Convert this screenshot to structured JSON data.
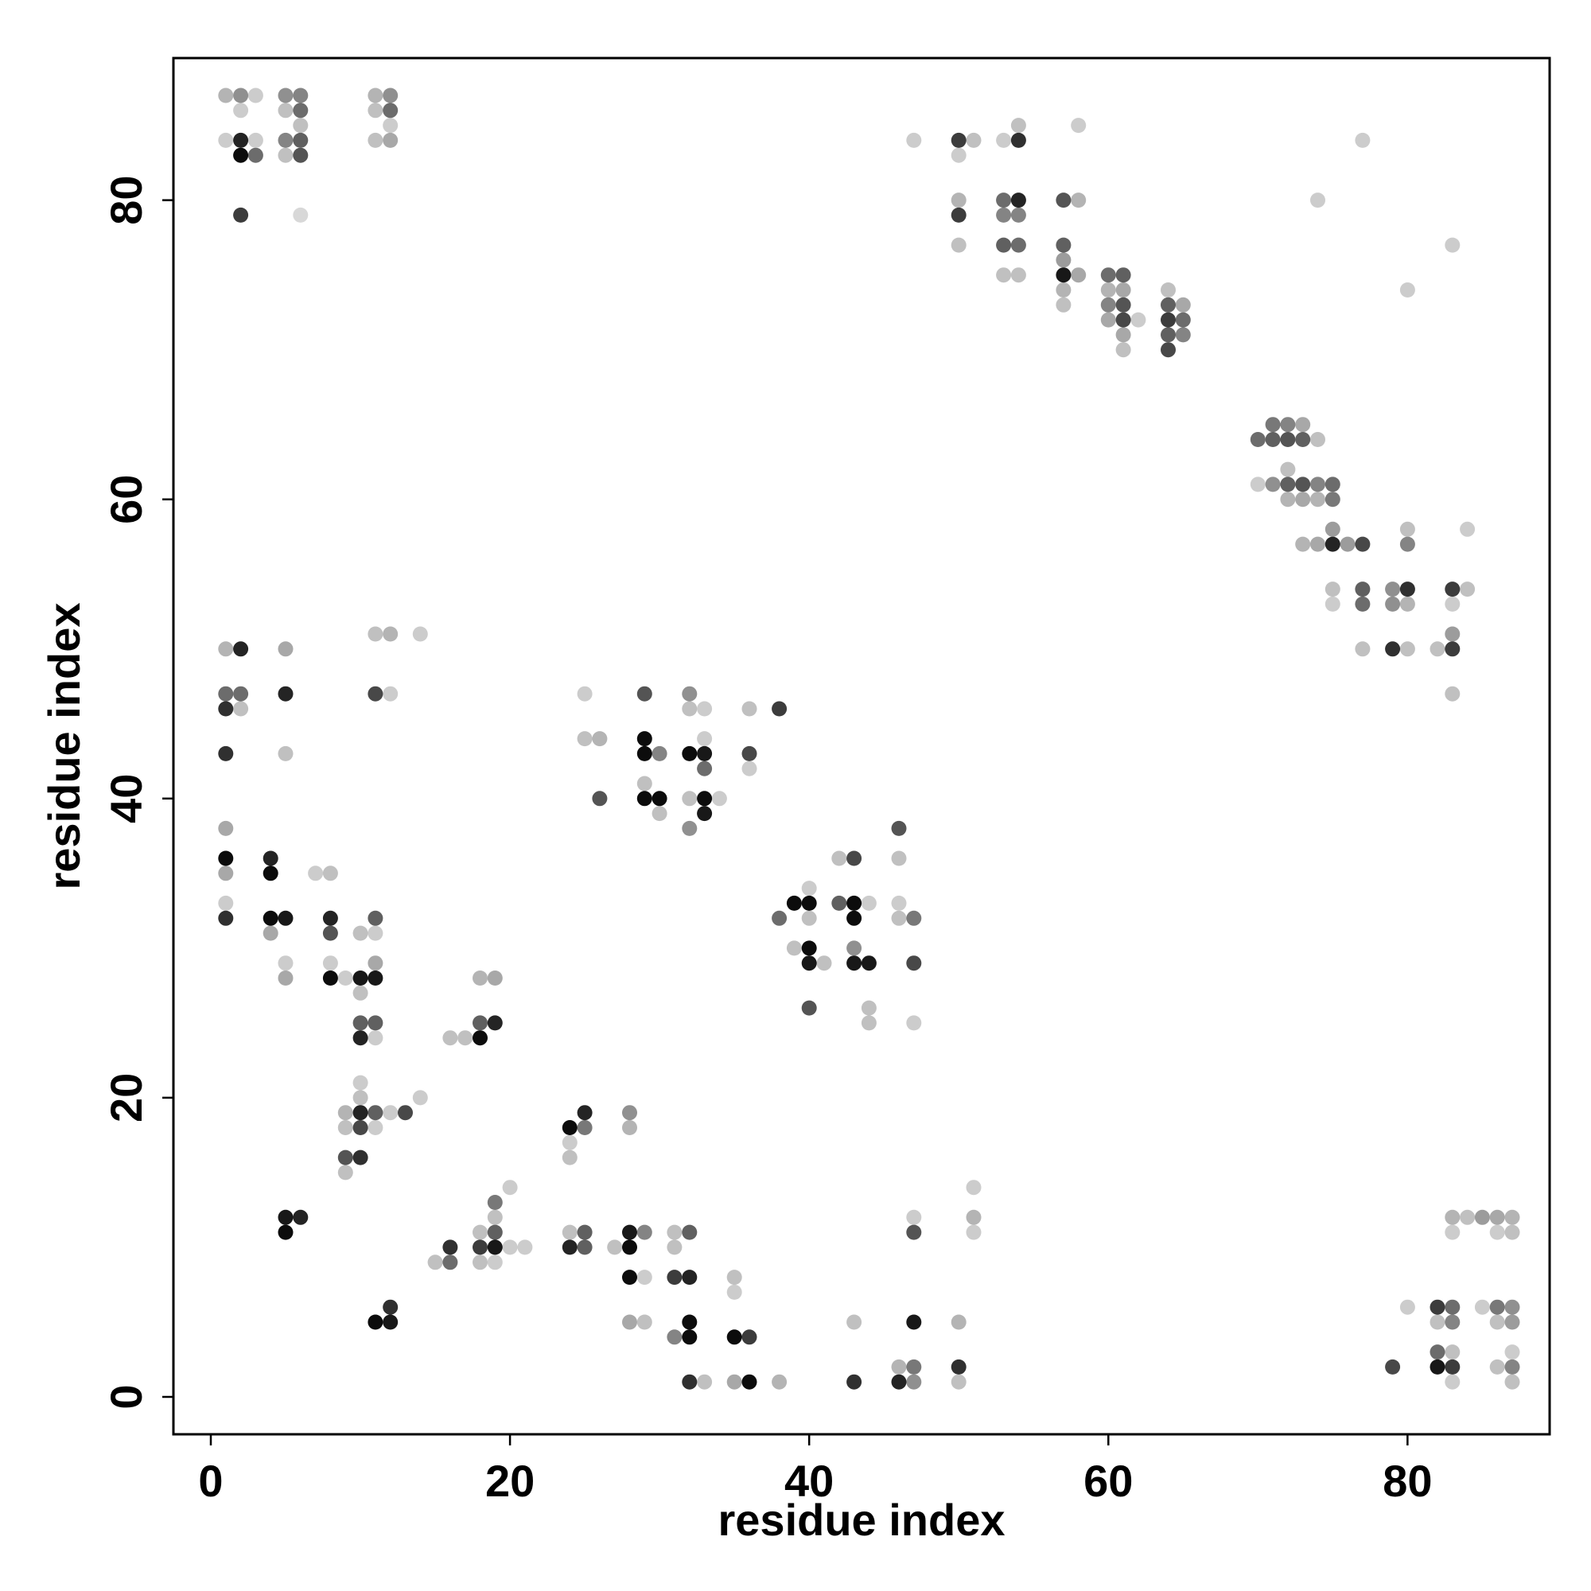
{
  "chart_data": {
    "type": "scatter",
    "title": "",
    "xlabel": "residue index",
    "ylabel": "residue index",
    "xlim": [
      -2.5,
      89.5
    ],
    "ylim": [
      -2.5,
      89.5
    ],
    "xticks": [
      0,
      20,
      40,
      60,
      80
    ],
    "yticks": [
      0,
      20,
      40,
      60,
      80
    ],
    "grid": false,
    "legend": "none",
    "value_meaning": "marker darkness from 0 (lightest grey) to 1 (black)",
    "colors": {
      "darkest": "#000000",
      "lightest": "#f0f0f0",
      "frame": "#000000"
    },
    "points": [
      [
        1,
        87,
        0.25
      ],
      [
        2,
        87,
        0.4
      ],
      [
        3,
        87,
        0.15
      ],
      [
        5,
        87,
        0.4
      ],
      [
        6,
        87,
        0.45
      ],
      [
        11,
        87,
        0.25
      ],
      [
        12,
        87,
        0.4
      ],
      [
        2,
        86,
        0.15
      ],
      [
        5,
        86,
        0.2
      ],
      [
        6,
        86,
        0.55
      ],
      [
        11,
        86,
        0.2
      ],
      [
        12,
        86,
        0.55
      ],
      [
        6,
        85,
        0.2
      ],
      [
        12,
        85,
        0.15
      ],
      [
        1,
        84,
        0.15
      ],
      [
        2,
        84,
        0.85
      ],
      [
        3,
        84,
        0.15
      ],
      [
        5,
        84,
        0.45
      ],
      [
        6,
        84,
        0.6
      ],
      [
        11,
        84,
        0.2
      ],
      [
        12,
        84,
        0.3
      ],
      [
        2,
        83,
        0.95
      ],
      [
        3,
        83,
        0.55
      ],
      [
        5,
        83,
        0.2
      ],
      [
        6,
        83,
        0.65
      ],
      [
        2,
        79,
        0.75
      ],
      [
        6,
        79,
        0.1
      ],
      [
        47,
        84,
        0.15
      ],
      [
        50,
        84,
        0.75
      ],
      [
        51,
        84,
        0.2
      ],
      [
        53,
        84,
        0.15
      ],
      [
        54,
        84,
        0.8
      ],
      [
        54,
        85,
        0.2
      ],
      [
        58,
        85,
        0.15
      ],
      [
        50,
        83,
        0.15
      ],
      [
        50,
        80,
        0.25
      ],
      [
        53,
        80,
        0.55
      ],
      [
        54,
        80,
        0.85
      ],
      [
        57,
        80,
        0.65
      ],
      [
        58,
        80,
        0.25
      ],
      [
        50,
        79,
        0.75
      ],
      [
        53,
        79,
        0.45
      ],
      [
        54,
        79,
        0.45
      ],
      [
        50,
        77,
        0.2
      ],
      [
        53,
        77,
        0.6
      ],
      [
        54,
        77,
        0.55
      ],
      [
        57,
        77,
        0.6
      ],
      [
        53,
        75,
        0.2
      ],
      [
        54,
        75,
        0.2
      ],
      [
        57,
        75,
        0.9
      ],
      [
        58,
        75,
        0.3
      ],
      [
        57,
        76,
        0.35
      ],
      [
        57,
        74,
        0.25
      ],
      [
        57,
        73,
        0.2
      ],
      [
        60,
        75,
        0.55
      ],
      [
        61,
        75,
        0.6
      ],
      [
        60,
        74,
        0.25
      ],
      [
        61,
        74,
        0.3
      ],
      [
        60,
        73,
        0.45
      ],
      [
        61,
        73,
        0.65
      ],
      [
        60,
        72,
        0.3
      ],
      [
        61,
        72,
        0.7
      ],
      [
        62,
        72,
        0.15
      ],
      [
        61,
        71,
        0.3
      ],
      [
        61,
        70,
        0.2
      ],
      [
        64,
        74,
        0.2
      ],
      [
        64,
        73,
        0.6
      ],
      [
        65,
        73,
        0.3
      ],
      [
        64,
        72,
        0.75
      ],
      [
        65,
        72,
        0.55
      ],
      [
        64,
        71,
        0.6
      ],
      [
        65,
        71,
        0.45
      ],
      [
        64,
        70,
        0.7
      ],
      [
        77,
        84,
        0.15
      ],
      [
        74,
        80,
        0.15
      ],
      [
        83,
        77,
        0.15
      ],
      [
        80,
        74,
        0.15
      ],
      [
        70,
        64,
        0.55
      ],
      [
        71,
        64,
        0.6
      ],
      [
        72,
        64,
        0.65
      ],
      [
        73,
        64,
        0.6
      ],
      [
        74,
        64,
        0.2
      ],
      [
        71,
        65,
        0.5
      ],
      [
        72,
        65,
        0.45
      ],
      [
        73,
        65,
        0.3
      ],
      [
        72,
        62,
        0.2
      ],
      [
        70,
        61,
        0.15
      ],
      [
        71,
        61,
        0.4
      ],
      [
        72,
        61,
        0.6
      ],
      [
        73,
        61,
        0.65
      ],
      [
        74,
        61,
        0.45
      ],
      [
        75,
        61,
        0.55
      ],
      [
        72,
        60,
        0.25
      ],
      [
        73,
        60,
        0.3
      ],
      [
        74,
        60,
        0.25
      ],
      [
        75,
        60,
        0.5
      ],
      [
        73,
        57,
        0.25
      ],
      [
        74,
        57,
        0.3
      ],
      [
        75,
        57,
        0.85
      ],
      [
        76,
        57,
        0.35
      ],
      [
        77,
        57,
        0.7
      ],
      [
        75,
        58,
        0.35
      ],
      [
        80,
        58,
        0.2
      ],
      [
        80,
        57,
        0.45
      ],
      [
        84,
        58,
        0.15
      ],
      [
        75,
        54,
        0.2
      ],
      [
        77,
        54,
        0.6
      ],
      [
        79,
        54,
        0.4
      ],
      [
        80,
        54,
        0.8
      ],
      [
        83,
        54,
        0.75
      ],
      [
        84,
        54,
        0.2
      ],
      [
        75,
        53,
        0.15
      ],
      [
        77,
        53,
        0.55
      ],
      [
        79,
        53,
        0.4
      ],
      [
        80,
        53,
        0.25
      ],
      [
        83,
        53,
        0.15
      ],
      [
        83,
        51,
        0.35
      ],
      [
        77,
        50,
        0.2
      ],
      [
        79,
        50,
        0.8
      ],
      [
        80,
        50,
        0.2
      ],
      [
        82,
        50,
        0.2
      ],
      [
        83,
        50,
        0.75
      ],
      [
        83,
        47,
        0.2
      ],
      [
        1,
        50,
        0.25
      ],
      [
        2,
        50,
        0.85
      ],
      [
        5,
        50,
        0.3
      ],
      [
        11,
        51,
        0.2
      ],
      [
        12,
        51,
        0.25
      ],
      [
        14,
        51,
        0.15
      ],
      [
        1,
        47,
        0.55
      ],
      [
        2,
        47,
        0.55
      ],
      [
        5,
        47,
        0.85
      ],
      [
        11,
        47,
        0.7
      ],
      [
        12,
        47,
        0.15
      ],
      [
        1,
        46,
        0.8
      ],
      [
        2,
        46,
        0.2
      ],
      [
        5,
        43,
        0.2
      ],
      [
        1,
        43,
        0.8
      ],
      [
        1,
        38,
        0.3
      ],
      [
        1,
        36,
        0.95
      ],
      [
        4,
        36,
        0.85
      ],
      [
        1,
        35,
        0.3
      ],
      [
        4,
        35,
        0.95
      ],
      [
        7,
        35,
        0.15
      ],
      [
        8,
        35,
        0.2
      ],
      [
        1,
        33,
        0.15
      ],
      [
        1,
        32,
        0.8
      ],
      [
        4,
        32,
        0.95
      ],
      [
        5,
        32,
        0.9
      ],
      [
        8,
        32,
        0.85
      ],
      [
        11,
        32,
        0.6
      ],
      [
        4,
        31,
        0.3
      ],
      [
        8,
        31,
        0.65
      ],
      [
        10,
        31,
        0.2
      ],
      [
        11,
        31,
        0.15
      ],
      [
        5,
        29,
        0.15
      ],
      [
        8,
        29,
        0.15
      ],
      [
        11,
        29,
        0.3
      ],
      [
        5,
        28,
        0.3
      ],
      [
        8,
        28,
        0.95
      ],
      [
        9,
        28,
        0.15
      ],
      [
        10,
        28,
        0.9
      ],
      [
        11,
        28,
        0.9
      ],
      [
        10,
        27,
        0.2
      ],
      [
        10,
        25,
        0.6
      ],
      [
        11,
        25,
        0.6
      ],
      [
        10,
        24,
        0.85
      ],
      [
        11,
        24,
        0.15
      ],
      [
        16,
        24,
        0.2
      ],
      [
        17,
        24,
        0.2
      ],
      [
        18,
        24,
        0.95
      ],
      [
        18,
        25,
        0.6
      ],
      [
        19,
        25,
        0.85
      ],
      [
        18,
        28,
        0.25
      ],
      [
        19,
        28,
        0.3
      ],
      [
        10,
        21,
        0.15
      ],
      [
        10,
        20,
        0.2
      ],
      [
        14,
        20,
        0.15
      ],
      [
        9,
        19,
        0.25
      ],
      [
        10,
        19,
        0.85
      ],
      [
        11,
        19,
        0.6
      ],
      [
        12,
        19,
        0.15
      ],
      [
        13,
        19,
        0.7
      ],
      [
        9,
        18,
        0.2
      ],
      [
        10,
        18,
        0.7
      ],
      [
        11,
        18,
        0.15
      ],
      [
        9,
        16,
        0.65
      ],
      [
        10,
        16,
        0.8
      ],
      [
        9,
        15,
        0.2
      ],
      [
        5,
        12,
        0.9
      ],
      [
        6,
        12,
        0.85
      ],
      [
        5,
        11,
        0.95
      ],
      [
        11,
        5,
        0.95
      ],
      [
        12,
        5,
        0.9
      ],
      [
        12,
        6,
        0.8
      ],
      [
        15,
        9,
        0.2
      ],
      [
        16,
        9,
        0.55
      ],
      [
        16,
        10,
        0.8
      ],
      [
        18,
        9,
        0.2
      ],
      [
        19,
        9,
        0.15
      ],
      [
        18,
        10,
        0.75
      ],
      [
        19,
        10,
        0.9
      ],
      [
        20,
        10,
        0.15
      ],
      [
        21,
        10,
        0.15
      ],
      [
        18,
        11,
        0.2
      ],
      [
        19,
        11,
        0.6
      ],
      [
        19,
        12,
        0.2
      ],
      [
        19,
        13,
        0.5
      ],
      [
        20,
        14,
        0.15
      ],
      [
        24,
        18,
        0.95
      ],
      [
        25,
        18,
        0.5
      ],
      [
        25,
        19,
        0.85
      ],
      [
        24,
        17,
        0.15
      ],
      [
        24,
        16,
        0.2
      ],
      [
        28,
        19,
        0.4
      ],
      [
        28,
        18,
        0.25
      ],
      [
        24,
        11,
        0.2
      ],
      [
        25,
        11,
        0.6
      ],
      [
        24,
        10,
        0.85
      ],
      [
        25,
        10,
        0.6
      ],
      [
        27,
        10,
        0.2
      ],
      [
        28,
        10,
        0.95
      ],
      [
        28,
        11,
        0.9
      ],
      [
        29,
        11,
        0.45
      ],
      [
        31,
        11,
        0.2
      ],
      [
        32,
        11,
        0.6
      ],
      [
        31,
        10,
        0.2
      ],
      [
        28,
        8,
        0.95
      ],
      [
        29,
        8,
        0.15
      ],
      [
        31,
        8,
        0.75
      ],
      [
        32,
        8,
        0.85
      ],
      [
        28,
        5,
        0.3
      ],
      [
        29,
        5,
        0.2
      ],
      [
        32,
        5,
        0.95
      ],
      [
        31,
        4,
        0.45
      ],
      [
        32,
        4,
        0.95
      ],
      [
        35,
        4,
        0.95
      ],
      [
        36,
        4,
        0.75
      ],
      [
        35,
        8,
        0.2
      ],
      [
        35,
        7,
        0.15
      ],
      [
        32,
        1,
        0.8
      ],
      [
        33,
        1,
        0.2
      ],
      [
        35,
        1,
        0.3
      ],
      [
        36,
        1,
        0.95
      ],
      [
        38,
        1,
        0.25
      ],
      [
        43,
        5,
        0.2
      ],
      [
        47,
        5,
        0.9
      ],
      [
        50,
        5,
        0.25
      ],
      [
        43,
        1,
        0.8
      ],
      [
        46,
        2,
        0.25
      ],
      [
        47,
        2,
        0.5
      ],
      [
        46,
        1,
        0.85
      ],
      [
        47,
        1,
        0.4
      ],
      [
        50,
        2,
        0.8
      ],
      [
        50,
        1,
        0.2
      ],
      [
        47,
        12,
        0.15
      ],
      [
        47,
        11,
        0.65
      ],
      [
        51,
        14,
        0.15
      ],
      [
        51,
        12,
        0.25
      ],
      [
        51,
        11,
        0.15
      ],
      [
        25,
        47,
        0.15
      ],
      [
        25,
        44,
        0.2
      ],
      [
        26,
        44,
        0.25
      ],
      [
        26,
        40,
        0.65
      ],
      [
        29,
        47,
        0.65
      ],
      [
        29,
        44,
        0.95
      ],
      [
        29,
        43,
        0.95
      ],
      [
        30,
        43,
        0.45
      ],
      [
        29,
        41,
        0.2
      ],
      [
        29,
        40,
        0.95
      ],
      [
        30,
        40,
        0.95
      ],
      [
        30,
        39,
        0.2
      ],
      [
        32,
        47,
        0.4
      ],
      [
        32,
        46,
        0.2
      ],
      [
        33,
        46,
        0.15
      ],
      [
        33,
        44,
        0.15
      ],
      [
        32,
        43,
        0.95
      ],
      [
        33,
        43,
        0.9
      ],
      [
        33,
        42,
        0.55
      ],
      [
        32,
        40,
        0.2
      ],
      [
        33,
        40,
        0.95
      ],
      [
        34,
        40,
        0.15
      ],
      [
        32,
        38,
        0.4
      ],
      [
        33,
        39,
        0.9
      ],
      [
        36,
        46,
        0.2
      ],
      [
        38,
        46,
        0.75
      ],
      [
        36,
        43,
        0.7
      ],
      [
        36,
        42,
        0.15
      ],
      [
        38,
        32,
        0.55
      ],
      [
        39,
        33,
        0.95
      ],
      [
        40,
        33,
        0.95
      ],
      [
        40,
        34,
        0.15
      ],
      [
        40,
        32,
        0.2
      ],
      [
        39,
        30,
        0.2
      ],
      [
        40,
        30,
        0.95
      ],
      [
        40,
        29,
        0.9
      ],
      [
        41,
        29,
        0.2
      ],
      [
        40,
        26,
        0.65
      ],
      [
        42,
        36,
        0.2
      ],
      [
        43,
        36,
        0.7
      ],
      [
        42,
        33,
        0.6
      ],
      [
        43,
        33,
        0.95
      ],
      [
        44,
        33,
        0.15
      ],
      [
        43,
        32,
        0.95
      ],
      [
        43,
        30,
        0.4
      ],
      [
        43,
        29,
        0.9
      ],
      [
        44,
        29,
        0.9
      ],
      [
        44,
        26,
        0.2
      ],
      [
        44,
        25,
        0.2
      ],
      [
        46,
        38,
        0.65
      ],
      [
        46,
        36,
        0.2
      ],
      [
        46,
        33,
        0.15
      ],
      [
        46,
        32,
        0.2
      ],
      [
        47,
        32,
        0.5
      ],
      [
        47,
        29,
        0.7
      ],
      [
        47,
        25,
        0.15
      ],
      [
        80,
        6,
        0.15
      ],
      [
        82,
        6,
        0.75
      ],
      [
        83,
        6,
        0.55
      ],
      [
        85,
        6,
        0.15
      ],
      [
        86,
        6,
        0.5
      ],
      [
        87,
        6,
        0.4
      ],
      [
        82,
        5,
        0.2
      ],
      [
        83,
        5,
        0.45
      ],
      [
        86,
        5,
        0.2
      ],
      [
        87,
        5,
        0.35
      ],
      [
        82,
        3,
        0.55
      ],
      [
        83,
        3,
        0.2
      ],
      [
        87,
        3,
        0.15
      ],
      [
        79,
        2,
        0.7
      ],
      [
        82,
        2,
        0.9
      ],
      [
        83,
        2,
        0.75
      ],
      [
        86,
        2,
        0.2
      ],
      [
        87,
        2,
        0.45
      ],
      [
        83,
        1,
        0.15
      ],
      [
        87,
        1,
        0.2
      ],
      [
        83,
        12,
        0.25
      ],
      [
        84,
        12,
        0.2
      ],
      [
        85,
        12,
        0.35
      ],
      [
        86,
        12,
        0.3
      ],
      [
        87,
        12,
        0.25
      ],
      [
        83,
        11,
        0.15
      ],
      [
        86,
        11,
        0.15
      ],
      [
        87,
        11,
        0.2
      ]
    ]
  }
}
